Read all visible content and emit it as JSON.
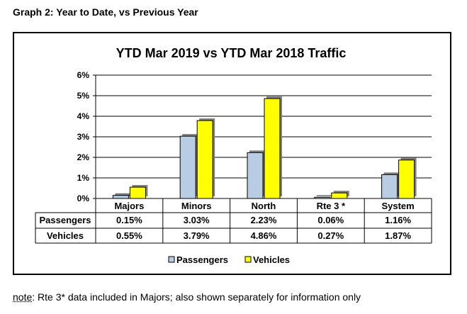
{
  "heading": "Graph 2: Year to Date, vs Previous Year",
  "note": {
    "prefix": "note",
    "text": ": Rte 3* data included in Majors; also shown separately for information only"
  },
  "colors": {
    "passengers": "#b8cce4",
    "vehicles": "#ffff00",
    "bar_outline": "#000000",
    "grid": "#000000"
  },
  "chart_data": {
    "type": "bar",
    "title": "YTD Mar 2019 vs YTD Mar 2018 Traffic",
    "categories": [
      "Majors",
      "Minors",
      "North",
      "Rte 3 *",
      "System"
    ],
    "series": [
      {
        "name": "Passengers",
        "values": [
          0.15,
          3.03,
          2.23,
          0.06,
          1.16
        ],
        "labels": [
          "0.15%",
          "3.03%",
          "2.23%",
          "0.06%",
          "1.16%"
        ]
      },
      {
        "name": "Vehicles",
        "values": [
          0.55,
          3.79,
          4.86,
          0.27,
          1.87
        ],
        "labels": [
          "0.55%",
          "3.79%",
          "4.86%",
          "0.27%",
          "1.87%"
        ]
      }
    ],
    "ylim": [
      0,
      6
    ],
    "yticks": [
      0,
      1,
      2,
      3,
      4,
      5,
      6
    ],
    "ytick_labels": [
      "0%",
      "1%",
      "2%",
      "3%",
      "4%",
      "5%",
      "6%"
    ],
    "grid": true,
    "legend": [
      "Passengers",
      "Vehicles"
    ],
    "legend_position": "bottom",
    "xlabel": "",
    "ylabel": ""
  }
}
